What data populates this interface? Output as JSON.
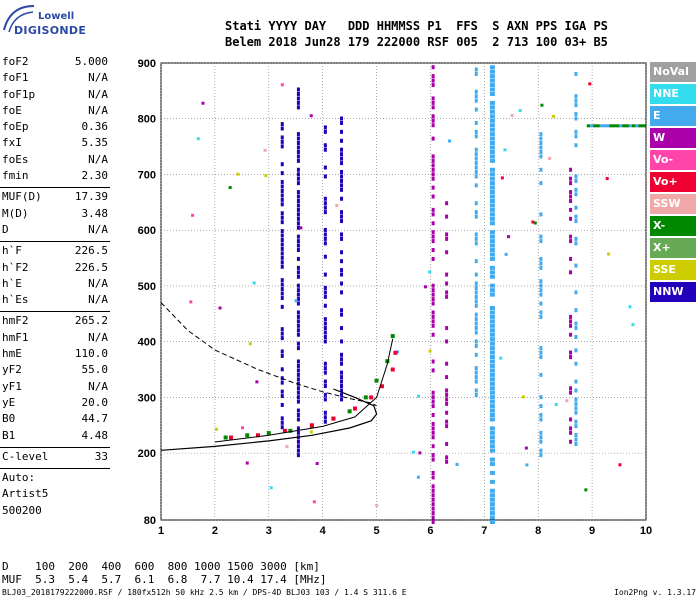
{
  "logo": {
    "line1": "Lowell",
    "line2": "DIGISONDE"
  },
  "header": {
    "line1": "Stati YYYY DAY   DDD HHMMSS P1  FFS  S AXN PPS IGA PS",
    "line2": "Belem 2018 Jun28 179 222000 RSF 005  2 713 100 03+ B5"
  },
  "params_group1": [
    {
      "name": "foF2",
      "value": "5.000"
    },
    {
      "name": "foF1",
      "value": "N/A"
    },
    {
      "name": "foF1p",
      "value": "N/A"
    },
    {
      "name": "foE",
      "value": "N/A"
    },
    {
      "name": "foEp",
      "value": "0.36"
    },
    {
      "name": "fxI",
      "value": "5.35"
    },
    {
      "name": "foEs",
      "value": "N/A"
    },
    {
      "name": "fmin",
      "value": "2.30"
    }
  ],
  "params_group2": [
    {
      "name": "MUF(D)",
      "value": "17.39"
    },
    {
      "name": "M(D)",
      "value": "3.48"
    },
    {
      "name": "D",
      "value": "N/A"
    }
  ],
  "params_group3": [
    {
      "name": "h`F",
      "value": "226.5"
    },
    {
      "name": "h`F2",
      "value": "226.5"
    },
    {
      "name": "h`E",
      "value": "N/A"
    },
    {
      "name": "h`Es",
      "value": "N/A"
    }
  ],
  "params_group4": [
    {
      "name": "hmF2",
      "value": "265.2"
    },
    {
      "name": "hmF1",
      "value": "N/A"
    },
    {
      "name": "hmE",
      "value": "110.0"
    },
    {
      "name": "yF2",
      "value": "55.0"
    },
    {
      "name": "yF1",
      "value": "N/A"
    },
    {
      "name": "yE",
      "value": "20.0"
    },
    {
      "name": "B0",
      "value": "44.7"
    },
    {
      "name": "B1",
      "value": "4.48"
    }
  ],
  "params_group5": [
    {
      "name": "C-level",
      "value": "33"
    }
  ],
  "auto_block": [
    "Auto:",
    "Artist5",
    "500200"
  ],
  "legend": [
    {
      "label": "NoVal",
      "color": "#a0a0a0"
    },
    {
      "label": "NNE",
      "color": "#33ddee"
    },
    {
      "label": "E",
      "color": "#44aaee"
    },
    {
      "label": "W",
      "color": "#aa00aa"
    },
    {
      "label": "Vo-",
      "color": "#ff44aa"
    },
    {
      "label": "Vo+",
      "color": "#ee0033"
    },
    {
      "label": "SSW",
      "color": "#f0a8a8"
    },
    {
      "label": "X-",
      "color": "#008800"
    },
    {
      "label": "X+",
      "color": "#66aa55"
    },
    {
      "label": "SSE",
      "color": "#cccc00"
    },
    {
      "label": "NNW",
      "color": "#2200bb"
    }
  ],
  "chart_data": {
    "type": "scatter",
    "xlim": [
      1,
      10
    ],
    "ylim": [
      80,
      900
    ],
    "x_ticks": [
      "1",
      "2",
      "3",
      "4",
      "5",
      "6",
      "7",
      "8",
      "9",
      "10"
    ],
    "y_ticks": [
      "80",
      "200",
      "300",
      "400",
      "500",
      "600",
      "700",
      "800",
      "900"
    ],
    "y_tick_values": [
      80,
      200,
      300,
      400,
      500,
      600,
      700,
      800,
      900
    ],
    "grid": true,
    "x_trace": {
      "name": "X+",
      "points": [
        [
          2.2,
          228
        ],
        [
          2.6,
          232
        ],
        [
          3.0,
          236
        ],
        [
          3.4,
          240
        ],
        [
          3.8,
          248
        ],
        [
          4.2,
          262
        ],
        [
          4.5,
          275
        ],
        [
          4.8,
          300
        ],
        [
          5.0,
          330
        ],
        [
          5.2,
          365
        ],
        [
          5.3,
          410
        ]
      ]
    },
    "o_trace": {
      "name": "Vo+",
      "points": [
        [
          2.3,
          228
        ],
        [
          2.8,
          232
        ],
        [
          3.3,
          240
        ],
        [
          3.8,
          250
        ],
        [
          4.2,
          262
        ],
        [
          4.6,
          280
        ],
        [
          4.9,
          300
        ],
        [
          5.1,
          320
        ],
        [
          5.3,
          350
        ],
        [
          5.35,
          380
        ]
      ]
    },
    "profile_curve": [
      [
        1.0,
        205
      ],
      [
        2.0,
        212
      ],
      [
        3.0,
        222
      ],
      [
        3.8,
        232
      ],
      [
        4.5,
        245
      ],
      [
        4.9,
        258
      ],
      [
        5.0,
        270
      ],
      [
        4.95,
        285
      ],
      [
        4.6,
        300
      ],
      [
        4.2,
        315
      ]
    ],
    "model_curve_upper": [
      [
        1.0,
        470
      ],
      [
        1.5,
        420
      ],
      [
        2.0,
        385
      ],
      [
        2.8,
        350
      ],
      [
        3.5,
        325
      ],
      [
        4.0,
        310
      ],
      [
        4.5,
        298
      ],
      [
        4.9,
        290
      ],
      [
        5.0,
        285
      ]
    ],
    "model_curve_lower": [
      [
        2.0,
        220
      ],
      [
        3.0,
        232
      ],
      [
        4.0,
        248
      ],
      [
        4.6,
        265
      ],
      [
        5.0,
        300
      ],
      [
        5.2,
        360
      ],
      [
        5.3,
        405
      ]
    ]
  },
  "bottom": {
    "d_line": "D    100  200  400  600  800 1000 1500 3000 [km]",
    "muf_line": "MUF  5.3  5.4  5.7  6.1  6.8  7.7 10.4 17.4 [MHz]"
  },
  "footer": "BLJ03_2018179222000.RSF / 180fx512h 50 kHz 2.5 km / DPS-4D BLJ03 103 / 1.4 S 311.6 E",
  "version": "Ion2Png v. 1.3.17"
}
